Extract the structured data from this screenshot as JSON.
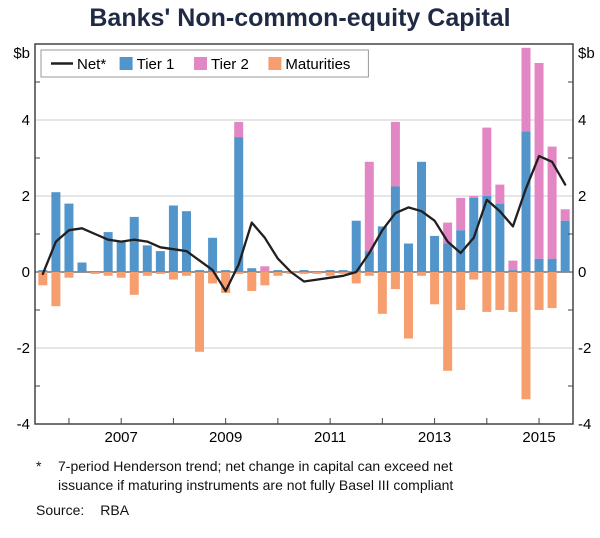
{
  "title": "Banks' Non-common-equity Capital",
  "footnote": {
    "marker": "*",
    "lines": [
      "7-period Henderson trend; net change in capital can exceed net",
      "issuance if maturing instruments are not fully Basel III compliant"
    ]
  },
  "source": {
    "label": "Source:",
    "value": "RBA"
  },
  "colors": {
    "title": "#1f2a44",
    "tier1": "#5295cb",
    "tier2": "#e286c4",
    "maturities": "#f69e6e",
    "net": "#231f20",
    "grid": "#cccccc",
    "zero": "#555555",
    "frame": "#444444",
    "legend_border": "#999999",
    "text": "#000000"
  },
  "chart_data": {
    "type": "bar",
    "stacked": true,
    "title": "Banks' Non-common-equity Capital",
    "unit_left": "$b",
    "unit_right": "$b",
    "ylim": [
      -4,
      6
    ],
    "yticks": [
      -4,
      -2,
      0,
      2,
      4
    ],
    "minor_yticks": [
      -3,
      -1,
      1,
      3,
      5
    ],
    "xlim": [
      2005.35,
      2015.65
    ],
    "year_ticks": [
      2006,
      2007,
      2008,
      2009,
      2010,
      2011,
      2012,
      2013,
      2014,
      2015
    ],
    "xtick_labels": [
      "2007",
      "2009",
      "2011",
      "2013",
      "2015"
    ],
    "xtick_label_positions": [
      2007,
      2009,
      2011,
      2013,
      2015
    ],
    "x": [
      2005.5,
      2005.75,
      2006.0,
      2006.25,
      2006.5,
      2006.75,
      2007.0,
      2007.25,
      2007.5,
      2007.75,
      2008.0,
      2008.25,
      2008.5,
      2008.75,
      2009.0,
      2009.25,
      2009.5,
      2009.75,
      2010.0,
      2010.25,
      2010.5,
      2010.75,
      2011.0,
      2011.25,
      2011.5,
      2011.75,
      2012.0,
      2012.25,
      2012.5,
      2012.75,
      2013.0,
      2013.25,
      2013.5,
      2013.75,
      2014.0,
      2014.25,
      2014.5,
      2014.75,
      2015.0,
      2015.25,
      2015.5
    ],
    "legend": [
      {
        "label": "Net*",
        "type": "line",
        "series": "net"
      },
      {
        "label": "Tier 1",
        "type": "box",
        "series": "tier1"
      },
      {
        "label": "Tier 2",
        "type": "box",
        "series": "tier2"
      },
      {
        "label": "Maturities",
        "type": "box",
        "series": "maturities"
      }
    ],
    "series": [
      {
        "name": "Tier 1",
        "key": "tier1",
        "kind": "bar",
        "values": [
          0.05,
          2.1,
          1.8,
          0.25,
          0,
          1.05,
          0.8,
          1.45,
          0.7,
          0.55,
          1.75,
          1.6,
          0.05,
          0.9,
          0.05,
          3.55,
          0.1,
          0,
          0.05,
          0,
          0.05,
          0,
          0.05,
          0.05,
          1.35,
          0.55,
          1.2,
          2.25,
          0.75,
          2.9,
          0.95,
          0.75,
          1.1,
          1.95,
          2.0,
          1.8,
          0.05,
          3.7,
          0.35,
          0.35,
          1.35
        ]
      },
      {
        "name": "Tier 2",
        "key": "tier2",
        "kind": "bar",
        "values": [
          0,
          0,
          0,
          0,
          0,
          0,
          0,
          0,
          0,
          0,
          0,
          0,
          0,
          0,
          0,
          0.4,
          0,
          0.15,
          0,
          0,
          0,
          0,
          0,
          0,
          0,
          2.35,
          0,
          1.7,
          0,
          0,
          0,
          0.55,
          0.85,
          0.05,
          1.8,
          0.5,
          0.25,
          2.2,
          5.15,
          2.95,
          0.3
        ]
      },
      {
        "name": "Maturities",
        "key": "maturities",
        "kind": "bar",
        "values": [
          -0.35,
          -0.9,
          -0.15,
          0,
          -0.05,
          -0.1,
          -0.15,
          -0.6,
          -0.1,
          -0.05,
          -0.2,
          -0.1,
          -2.1,
          -0.3,
          -0.55,
          -0.05,
          -0.5,
          -0.35,
          -0.1,
          -0.05,
          -0.05,
          -0.05,
          -0.1,
          -0.05,
          -0.3,
          -0.1,
          -1.1,
          -0.45,
          -1.75,
          -0.1,
          -0.85,
          -2.6,
          -1.0,
          -0.2,
          -1.05,
          -1.0,
          -1.05,
          -3.35,
          -1.0,
          -0.95,
          0
        ]
      },
      {
        "name": "Net*",
        "key": "net",
        "kind": "line",
        "values": [
          -0.05,
          0.8,
          1.1,
          1.15,
          1.0,
          0.85,
          0.8,
          0.85,
          0.8,
          0.65,
          0.6,
          0.55,
          0.3,
          0.05,
          -0.5,
          0.2,
          1.3,
          0.9,
          0.35,
          0.0,
          -0.25,
          -0.2,
          -0.15,
          -0.1,
          0.0,
          0.5,
          1.1,
          1.55,
          1.7,
          1.6,
          1.35,
          0.8,
          0.5,
          0.9,
          1.9,
          1.6,
          1.2,
          2.2,
          3.05,
          2.9,
          2.3
        ]
      }
    ]
  }
}
